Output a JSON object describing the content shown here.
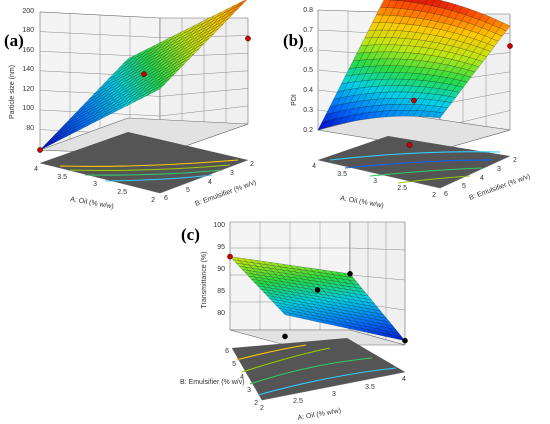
{
  "figure": {
    "panels": [
      {
        "label": "(a)",
        "zlabel": "Particle size (nm)",
        "xlabel": "A: Oil (% w/w)",
        "ylabel": "B: Emulsifier (% w/v)",
        "z_ticks": [
          "80",
          "100",
          "120",
          "140",
          "160",
          "180",
          "200"
        ],
        "x_ticks": [
          "4",
          "3.5",
          "3",
          "2.5",
          "2"
        ],
        "y_ticks": [
          "6",
          "5",
          "4",
          "3",
          "2"
        ]
      },
      {
        "label": "(b)",
        "zlabel": "PDI",
        "xlabel": "A: Oil (% w/w)",
        "ylabel": "B: Emulsifier (% w/v)",
        "z_ticks": [
          "0.2",
          "0.3",
          "0.4",
          "0.5",
          "0.6",
          "0.7",
          "0.8"
        ],
        "x_ticks": [
          "4",
          "3.5",
          "3",
          "2.5",
          "2"
        ],
        "y_ticks": [
          "6",
          "5",
          "4",
          "3",
          "2"
        ]
      },
      {
        "label": "(c)",
        "zlabel": "Transmittance (%)",
        "xlabel": "A: Oil (% w/w)",
        "ylabel": "B: Emulsifier (% w/v)",
        "z_ticks": [
          "80",
          "85",
          "90",
          "95",
          "100"
        ],
        "x_ticks": [
          "2",
          "2.5",
          "3",
          "3.5",
          "4"
        ],
        "y_ticks": [
          "6",
          "5",
          "4",
          "3",
          "2"
        ]
      }
    ]
  },
  "chart_data": [
    {
      "type": "surface",
      "title": "",
      "xlabel": "A: Oil (% w/w)",
      "ylabel": "B: Emulsifier (% w/v)",
      "zlabel": "Particle size (nm)",
      "x_range": [
        2,
        4
      ],
      "y_range": [
        2,
        6
      ],
      "zlim": [
        80,
        200
      ],
      "surface_corners": [
        {
          "oil": 2,
          "emulsifier": 2,
          "value": 190
        },
        {
          "oil": 4,
          "emulsifier": 2,
          "value": 132
        },
        {
          "oil": 2,
          "emulsifier": 6,
          "value": 138
        },
        {
          "oil": 4,
          "emulsifier": 6,
          "value": 80
        }
      ],
      "design_points": [
        {
          "oil": 2,
          "emulsifier": 2,
          "value": 155,
          "color": "#cc0000"
        },
        {
          "oil": 3,
          "emulsifier": 4,
          "value": 135,
          "color": "#cc0000"
        },
        {
          "oil": 4,
          "emulsifier": 6,
          "value": 80,
          "color": "#cc0000"
        }
      ],
      "contour_floor": true,
      "grid": true
    },
    {
      "type": "surface",
      "title": "",
      "xlabel": "A: Oil (% w/w)",
      "ylabel": "B: Emulsifier (% w/v)",
      "zlabel": "PDI",
      "x_range": [
        2,
        4
      ],
      "y_range": [
        2,
        6
      ],
      "zlim": [
        0.2,
        0.8
      ],
      "surface_corners": [
        {
          "oil": 2,
          "emulsifier": 2,
          "value": 0.72
        },
        {
          "oil": 4,
          "emulsifier": 2,
          "value": 0.8
        },
        {
          "oil": 2,
          "emulsifier": 6,
          "value": 0.36
        },
        {
          "oil": 4,
          "emulsifier": 6,
          "value": 0.2
        }
      ],
      "design_points": [
        {
          "oil": 2,
          "emulsifier": 2,
          "value": 0.62,
          "color": "#cc0000"
        },
        {
          "oil": 3,
          "emulsifier": 4,
          "value": 0.35,
          "color": "#cc0000"
        },
        {
          "oil": 2.5,
          "emulsifier": 6,
          "value": 0.2,
          "color": "#cc0000"
        }
      ],
      "contour_floor": true,
      "grid": true
    },
    {
      "type": "surface",
      "title": "",
      "xlabel": "A: Oil (% w/w)",
      "ylabel": "B: Emulsifier (% w/v)",
      "zlabel": "Transmittance (%)",
      "x_range": [
        2,
        4
      ],
      "y_range": [
        2,
        6
      ],
      "zlim": [
        75,
        100
      ],
      "surface_corners": [
        {
          "oil": 2,
          "emulsifier": 2,
          "value": 92
        },
        {
          "oil": 4,
          "emulsifier": 2,
          "value": 88
        },
        {
          "oil": 2,
          "emulsifier": 6,
          "value": 82
        },
        {
          "oil": 4,
          "emulsifier": 6,
          "value": 76
        }
      ],
      "design_points": [
        {
          "oil": 2,
          "emulsifier": 2,
          "value": 92,
          "color": "#cc0000"
        },
        {
          "oil": 3,
          "emulsifier": 4,
          "value": 86,
          "color": "#000000"
        },
        {
          "oil": 4,
          "emulsifier": 2,
          "value": 88,
          "color": "#000000"
        },
        {
          "oil": 4,
          "emulsifier": 6,
          "value": 76,
          "color": "#000000"
        },
        {
          "oil": 2,
          "emulsifier": 6,
          "value": 77,
          "color": "#000000"
        }
      ],
      "contour_floor": true,
      "grid": true
    }
  ]
}
